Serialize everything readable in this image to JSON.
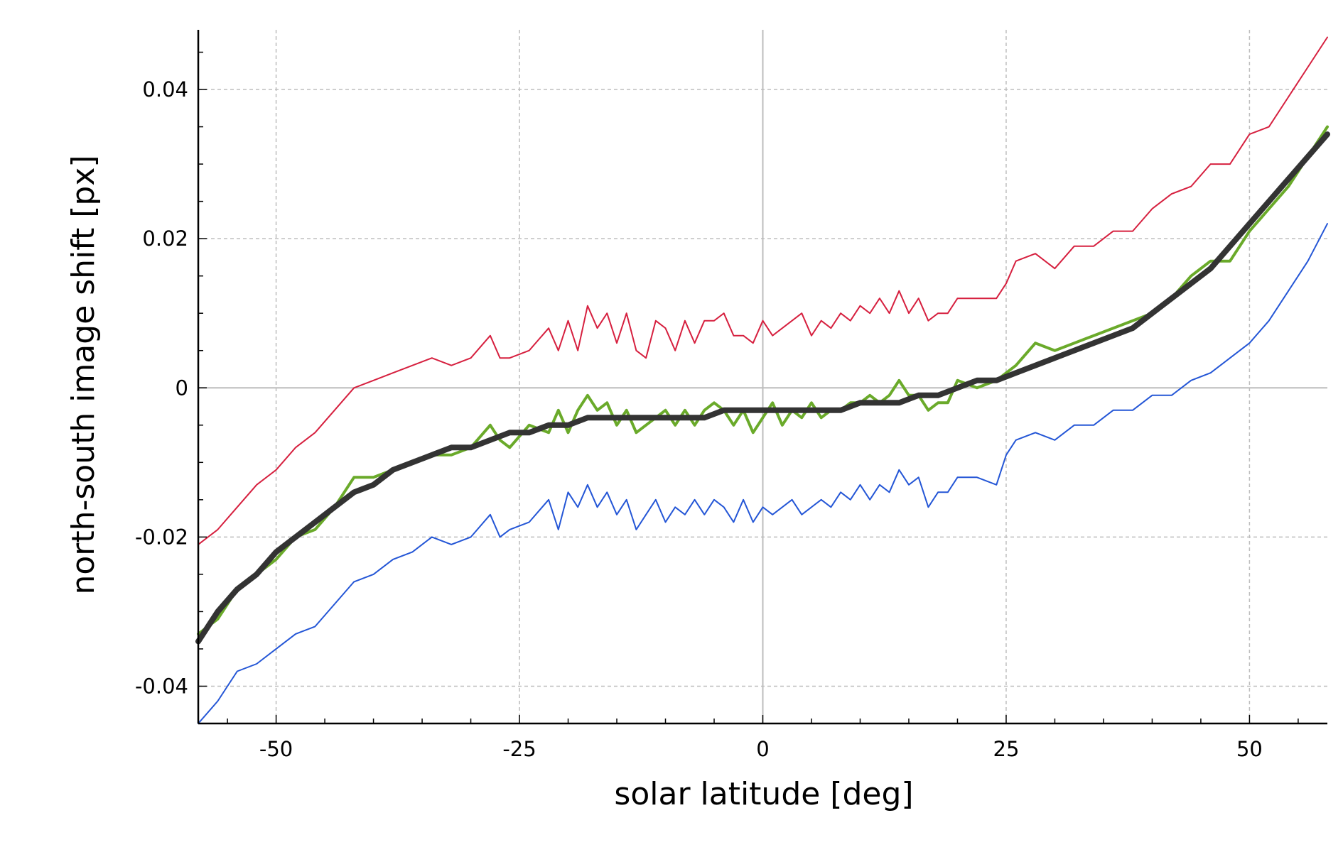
{
  "chart_data": {
    "type": "line",
    "title": "",
    "xlabel": "solar latitude [deg]",
    "ylabel": "north-south image shift [px]",
    "xlim": [
      -58,
      58
    ],
    "ylim": [
      -0.045,
      0.048
    ],
    "grid": true,
    "legend": "none",
    "xticks": [
      {
        "value": -50,
        "label": "-50"
      },
      {
        "value": -25,
        "label": "-25"
      },
      {
        "value": 0,
        "label": "0"
      },
      {
        "value": 25,
        "label": "25"
      },
      {
        "value": 50,
        "label": "50"
      }
    ],
    "yticks": [
      {
        "value": -0.04,
        "label": "-0.04"
      },
      {
        "value": -0.02,
        "label": "-0.02"
      },
      {
        "value": 0,
        "label": "0"
      },
      {
        "value": 0.02,
        "label": "0.02"
      },
      {
        "value": 0.04,
        "label": "0.04"
      }
    ],
    "series": [
      {
        "color": "#d6203f",
        "x": [
          -58,
          -56,
          -54,
          -52,
          -50,
          -48,
          -46,
          -44,
          -42,
          -40,
          -38,
          -36,
          -34,
          -32,
          -30,
          -28,
          -27,
          -26,
          -24,
          -22,
          -21,
          -20,
          -19,
          -18,
          -17,
          -16,
          -15,
          -14,
          -13,
          -12,
          -11,
          -10,
          -9,
          -8,
          -7,
          -6,
          -5,
          -4,
          -3,
          -2,
          -1,
          0,
          1,
          2,
          3,
          4,
          5,
          6,
          7,
          8,
          9,
          10,
          11,
          12,
          13,
          14,
          15,
          16,
          17,
          18,
          19,
          20,
          22,
          24,
          25,
          26,
          28,
          30,
          32,
          34,
          36,
          38,
          40,
          42,
          44,
          46,
          48,
          50,
          52,
          54,
          56,
          58
        ],
        "y": [
          -0.021,
          -0.019,
          -0.016,
          -0.013,
          -0.011,
          -0.008,
          -0.006,
          -0.003,
          0,
          0.001,
          0.002,
          0.003,
          0.004,
          0.003,
          0.004,
          0.007,
          0.004,
          0.004,
          0.005,
          0.008,
          0.005,
          0.009,
          0.005,
          0.011,
          0.008,
          0.01,
          0.006,
          0.01,
          0.005,
          0.004,
          0.009,
          0.008,
          0.005,
          0.009,
          0.006,
          0.009,
          0.009,
          0.01,
          0.007,
          0.007,
          0.006,
          0.009,
          0.007,
          0.008,
          0.009,
          0.01,
          0.007,
          0.009,
          0.008,
          0.01,
          0.009,
          0.011,
          0.01,
          0.012,
          0.01,
          0.013,
          0.01,
          0.012,
          0.009,
          0.01,
          0.01,
          0.012,
          0.012,
          0.012,
          0.014,
          0.017,
          0.018,
          0.016,
          0.019,
          0.019,
          0.021,
          0.021,
          0.024,
          0.026,
          0.027,
          0.03,
          0.03,
          0.034,
          0.035,
          0.039,
          0.043,
          0.047
        ]
      },
      {
        "color": "#2456d6",
        "x": [
          -58,
          -56,
          -54,
          -52,
          -50,
          -48,
          -46,
          -44,
          -42,
          -40,
          -38,
          -36,
          -34,
          -32,
          -30,
          -28,
          -27,
          -26,
          -24,
          -22,
          -21,
          -20,
          -19,
          -18,
          -17,
          -16,
          -15,
          -14,
          -13,
          -12,
          -11,
          -10,
          -9,
          -8,
          -7,
          -6,
          -5,
          -4,
          -3,
          -2,
          -1,
          0,
          1,
          2,
          3,
          4,
          5,
          6,
          7,
          8,
          9,
          10,
          11,
          12,
          13,
          14,
          15,
          16,
          17,
          18,
          19,
          20,
          22,
          24,
          25,
          26,
          28,
          30,
          32,
          34,
          36,
          38,
          40,
          42,
          44,
          46,
          48,
          50,
          52,
          54,
          56,
          58
        ],
        "y": [
          -0.045,
          -0.042,
          -0.038,
          -0.037,
          -0.035,
          -0.033,
          -0.032,
          -0.029,
          -0.026,
          -0.025,
          -0.023,
          -0.022,
          -0.02,
          -0.021,
          -0.02,
          -0.017,
          -0.02,
          -0.019,
          -0.018,
          -0.015,
          -0.019,
          -0.014,
          -0.016,
          -0.013,
          -0.016,
          -0.014,
          -0.017,
          -0.015,
          -0.019,
          -0.017,
          -0.015,
          -0.018,
          -0.016,
          -0.017,
          -0.015,
          -0.017,
          -0.015,
          -0.016,
          -0.018,
          -0.015,
          -0.018,
          -0.016,
          -0.017,
          -0.016,
          -0.015,
          -0.017,
          -0.016,
          -0.015,
          -0.016,
          -0.014,
          -0.015,
          -0.013,
          -0.015,
          -0.013,
          -0.014,
          -0.011,
          -0.013,
          -0.012,
          -0.016,
          -0.014,
          -0.014,
          -0.012,
          -0.012,
          -0.013,
          -0.009,
          -0.007,
          -0.006,
          -0.007,
          -0.005,
          -0.005,
          -0.003,
          -0.003,
          -0.001,
          -0.001,
          0.001,
          0.002,
          0.004,
          0.006,
          0.009,
          0.013,
          0.017,
          0.022
        ]
      },
      {
        "color": "#6aaa2a",
        "x": [
          -58,
          -56,
          -54,
          -52,
          -50,
          -48,
          -46,
          -44,
          -42,
          -40,
          -38,
          -36,
          -34,
          -32,
          -30,
          -28,
          -27,
          -26,
          -24,
          -22,
          -21,
          -20,
          -19,
          -18,
          -17,
          -16,
          -15,
          -14,
          -13,
          -12,
          -11,
          -10,
          -9,
          -8,
          -7,
          -6,
          -5,
          -4,
          -3,
          -2,
          -1,
          0,
          1,
          2,
          3,
          4,
          5,
          6,
          7,
          8,
          9,
          10,
          11,
          12,
          13,
          14,
          15,
          16,
          17,
          18,
          19,
          20,
          22,
          24,
          25,
          26,
          28,
          30,
          32,
          34,
          36,
          38,
          40,
          42,
          44,
          46,
          48,
          50,
          52,
          54,
          56,
          58
        ],
        "y": [
          -0.033,
          -0.031,
          -0.027,
          -0.025,
          -0.023,
          -0.02,
          -0.019,
          -0.016,
          -0.012,
          -0.012,
          -0.011,
          -0.01,
          -0.009,
          -0.009,
          -0.008,
          -0.005,
          -0.007,
          -0.008,
          -0.005,
          -0.006,
          -0.003,
          -0.006,
          -0.003,
          -0.001,
          -0.003,
          -0.002,
          -0.005,
          -0.003,
          -0.006,
          -0.005,
          -0.004,
          -0.003,
          -0.005,
          -0.003,
          -0.005,
          -0.003,
          -0.002,
          -0.003,
          -0.005,
          -0.003,
          -0.006,
          -0.004,
          -0.002,
          -0.005,
          -0.003,
          -0.004,
          -0.002,
          -0.004,
          -0.003,
          -0.003,
          -0.002,
          -0.002,
          -0.001,
          -0.002,
          -0.001,
          0.001,
          -0.001,
          -0.001,
          -0.003,
          -0.002,
          -0.002,
          0.001,
          0,
          0.001,
          0.002,
          0.003,
          0.006,
          0.005,
          0.006,
          0.007,
          0.008,
          0.009,
          0.01,
          0.012,
          0.015,
          0.017,
          0.017,
          0.021,
          0.024,
          0.027,
          0.031,
          0.035
        ]
      },
      {
        "color": "#333333",
        "x": [
          -58,
          -56,
          -54,
          -52,
          -50,
          -48,
          -46,
          -44,
          -42,
          -40,
          -38,
          -36,
          -34,
          -32,
          -30,
          -28,
          -26,
          -24,
          -22,
          -20,
          -18,
          -16,
          -14,
          -12,
          -10,
          -8,
          -6,
          -4,
          -2,
          0,
          2,
          4,
          6,
          8,
          10,
          12,
          14,
          16,
          18,
          20,
          22,
          24,
          26,
          28,
          30,
          32,
          34,
          36,
          38,
          40,
          42,
          44,
          46,
          48,
          50,
          52,
          54,
          56,
          58
        ],
        "y": [
          -0.034,
          -0.03,
          -0.027,
          -0.025,
          -0.022,
          -0.02,
          -0.018,
          -0.016,
          -0.014,
          -0.013,
          -0.011,
          -0.01,
          -0.009,
          -0.008,
          -0.008,
          -0.007,
          -0.006,
          -0.006,
          -0.005,
          -0.005,
          -0.004,
          -0.004,
          -0.004,
          -0.004,
          -0.004,
          -0.004,
          -0.004,
          -0.003,
          -0.003,
          -0.003,
          -0.003,
          -0.003,
          -0.003,
          -0.003,
          -0.002,
          -0.002,
          -0.002,
          -0.001,
          -0.001,
          0,
          0.001,
          0.001,
          0.002,
          0.003,
          0.004,
          0.005,
          0.006,
          0.007,
          0.008,
          0.01,
          0.012,
          0.014,
          0.016,
          0.019,
          0.022,
          0.025,
          0.028,
          0.031,
          0.034
        ]
      }
    ]
  }
}
